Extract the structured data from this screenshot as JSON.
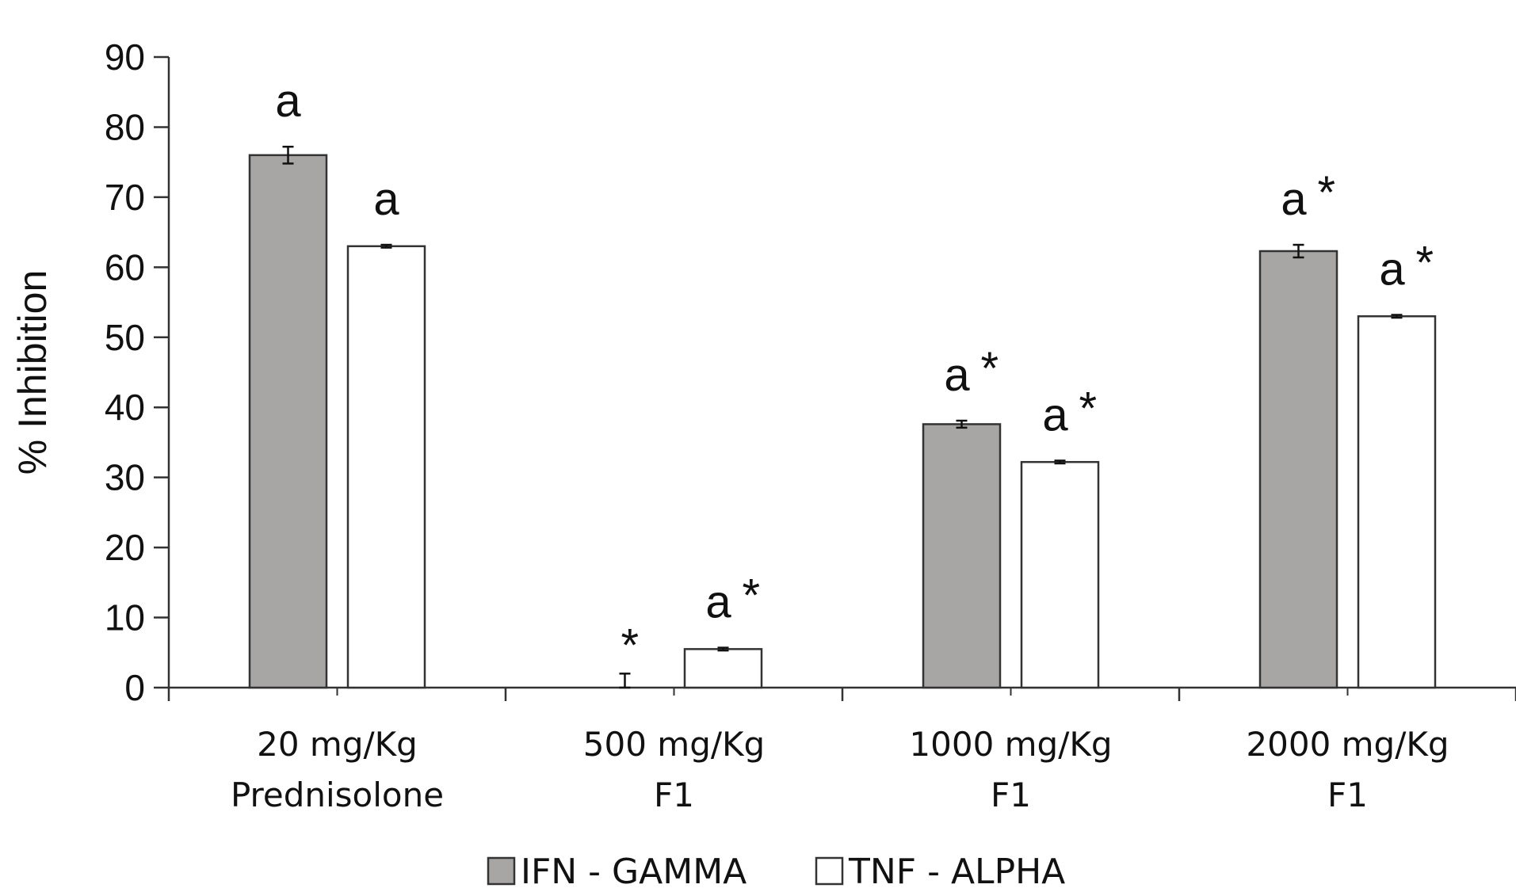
{
  "chart_data": {
    "type": "bar",
    "ylabel": "% Inhibition",
    "ylim": [
      0,
      90
    ],
    "yticks": [
      "0",
      "10",
      "20",
      "30",
      "40",
      "50",
      "60",
      "70",
      "80",
      "90"
    ],
    "categories": [
      {
        "line1": "20 mg/Kg",
        "line2": "Prednisolone"
      },
      {
        "line1": "500 mg/Kg",
        "line2": "F1"
      },
      {
        "line1": "1000 mg/Kg",
        "line2": "F1"
      },
      {
        "line1": "2000 mg/Kg",
        "line2": "F1"
      }
    ],
    "series": [
      {
        "name": "IFN - GAMMA",
        "color": "#a8a5a5",
        "values": [
          76,
          0,
          37.6,
          62.3
        ],
        "errors": [
          1.2,
          2,
          0.5,
          0.9
        ],
        "annotations": [
          {
            "letter": "a",
            "star": ""
          },
          {
            "letter": "",
            "star": "*"
          },
          {
            "letter": "a",
            "star": "*"
          },
          {
            "letter": "a",
            "star": "*"
          }
        ]
      },
      {
        "name": "TNF - ALPHA",
        "color": "#ffffff",
        "values": [
          63,
          5.5,
          32.2,
          53
        ],
        "errors": [
          0.2,
          0.2,
          0.2,
          0.2
        ],
        "annotations": [
          {
            "letter": "a",
            "star": ""
          },
          {
            "letter": "a",
            "star": "*"
          },
          {
            "letter": "a",
            "star": "*"
          },
          {
            "letter": "a",
            "star": "*"
          }
        ]
      }
    ],
    "legend": [
      "IFN - GAMMA",
      "TNF - ALPHA"
    ]
  }
}
